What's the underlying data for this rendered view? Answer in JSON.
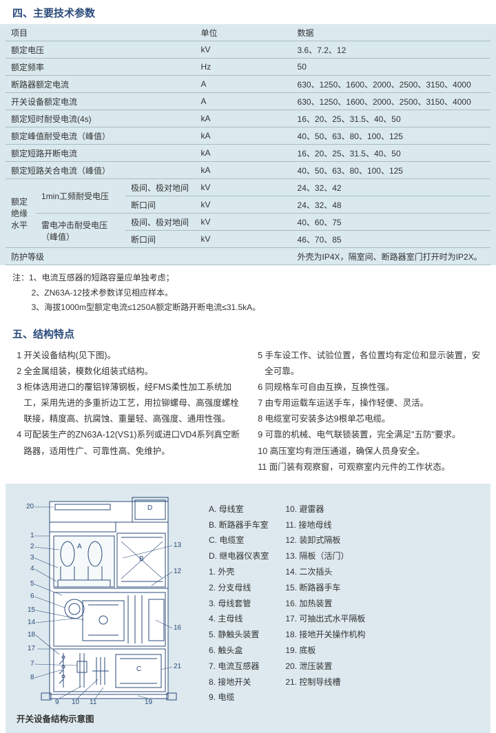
{
  "sectionA": {
    "title": "四、主要技术参数"
  },
  "table": {
    "head": {
      "c1": "项目",
      "c2": "单位",
      "c3": "数据"
    },
    "rows": [
      {
        "c1": "额定电压",
        "c2": "kV",
        "c3": "3.6、7.2、12"
      },
      {
        "c1": "额定频率",
        "c2": "Hz",
        "c3": "50"
      },
      {
        "c1": "断路器额定电流",
        "c2": "A",
        "c3": "630、1250、1600、2000、2500、3150、4000"
      },
      {
        "c1": "开关设备额定电流",
        "c2": "A",
        "c3": "630、1250、1600、2000、2500、3150、4000"
      },
      {
        "c1": "额定短时耐受电流(4s)",
        "c2": "kA",
        "c3": "16、20、25、31.5、40、50"
      },
      {
        "c1": "额定峰值耐受电流（峰值）",
        "c2": "kA",
        "c3": "40、50、63、80、100、125"
      },
      {
        "c1": "额定短路开断电流",
        "c2": "kA",
        "c3": "16、20、25、31.5、40、50"
      },
      {
        "c1": "额定短路关合电流（峰值）",
        "c2": "kA",
        "c3": "40、50、63、80、100、125"
      }
    ],
    "insulation": {
      "label": "额定\n绝缘水平",
      "r1": {
        "a": "1min工频耐受电压",
        "b": "极间、极对地间",
        "c": "kV",
        "d": "24、32、42"
      },
      "r2": {
        "b": "断口间",
        "c": "kV",
        "d": "24、32、48"
      },
      "r3": {
        "a": "雷电冲击耐受电压（峰值）",
        "b": "极间、极对地间",
        "c": "kV",
        "d": "40、60、75"
      },
      "r4": {
        "b": "断口间",
        "c": "kV",
        "d": "46、70、85"
      }
    },
    "protection": {
      "c1": "防护等级",
      "c3": "外壳为IP4X，隔室间、断路器室门打开时为IP2X。"
    }
  },
  "notes": {
    "n1": "注：1、电流互感器的短路容量应单独考虑；",
    "n2": "2、ZN63A-12技术参数详见相应样本。",
    "n3": "3、海拔1000m型额定电流≤1250A额定断路开断电流≤31.5kA。"
  },
  "sectionB": {
    "title": "五、结构特点"
  },
  "features": {
    "left": [
      "1 开关设备结构(见下图)。",
      "2 全金属组装，模数化组装式结构。",
      "3 柜体选用进口的覆铝锌薄钢板，经FMS柔性加工系统加工，采用先进的多重折边工艺，用拉铆螺母、高强度螺栓联接，精度高、抗腐蚀、重量轻、高强度、通用性强。",
      "4 可配装生产的ZN63A-12(VS1)系列或进口VD4系列真空断路器，适用性广、可靠性高、免维护。"
    ],
    "right": [
      "5 手车设工作、试验位置，各位置均有定位和显示装置，安全可靠。",
      "6 同规格车可自由互换，互换性强。",
      "7 由专用运载车运送手车，操作轻便、灵活。",
      "8 电缆室可安装多达9根单芯电缆。",
      "9 可靠的机械、电气联锁装置，完全满足\"五防\"要求。",
      "10 高压室均有泄压通道，确保人员身安全。",
      "11 面门装有观察窗，可观察室内元件的工作状态。"
    ]
  },
  "diagram": {
    "caption": "开关设备结构示意图",
    "colors": {
      "bg": "#dde9ee",
      "line": "#2a4a7a",
      "fill": "#fff"
    },
    "legendA": [
      "A. 母线室",
      "B. 断路器手车室",
      "C. 电缆室",
      "D. 继电器仪表室",
      "1. 外壳",
      "2. 分支母线",
      "3. 母线套管",
      "4. 主母线",
      "5. 静触头装置",
      "6. 触头盒",
      "7. 电流互感器",
      "8. 接地开关",
      "9. 电缆"
    ],
    "legendB": [
      "10. 避雷器",
      "11. 接地母线",
      "12. 装卸式隔板",
      "13. 隔板（活门）",
      "14. 二次插头",
      "15. 断路器手车",
      "16. 加热装置",
      "17. 可抽出式水平隔板",
      "18. 接地开关操作机构",
      "19. 底板",
      "20. 泄压装置",
      "21. 控制导线槽"
    ],
    "callouts": [
      "20",
      "1",
      "2",
      "3",
      "4",
      "5",
      "6",
      "15",
      "14",
      "18",
      "17",
      "7",
      "8",
      "9",
      "10",
      "11",
      "19",
      "D",
      "A",
      "13",
      "12",
      "B",
      "16",
      "C",
      "21"
    ]
  }
}
